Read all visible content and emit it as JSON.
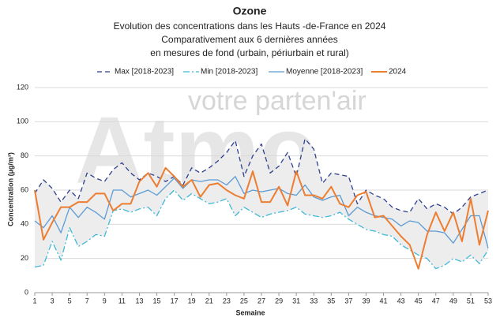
{
  "chart_data": {
    "type": "line",
    "title": "Ozone",
    "subtitle": [
      "Evolution des concentrations dans les Hauts -de-France en 2024",
      "Comparativement aux 6 dernières années",
      "en mesures de fond (urbain, périurbain et rural)"
    ],
    "watermark": [
      "votre parten'air",
      "Atmo"
    ],
    "xlabel": "Semaine",
    "ylabel": "Concentration (µg/m³)",
    "x": [
      1,
      2,
      3,
      4,
      5,
      6,
      7,
      8,
      9,
      10,
      11,
      12,
      13,
      14,
      15,
      16,
      17,
      18,
      19,
      20,
      21,
      22,
      23,
      24,
      25,
      26,
      27,
      28,
      29,
      30,
      31,
      32,
      33,
      34,
      35,
      36,
      37,
      38,
      39,
      40,
      41,
      42,
      43,
      44,
      45,
      46,
      47,
      48,
      49,
      50,
      51,
      52,
      53
    ],
    "xlim": [
      1,
      53
    ],
    "xticks": [
      1,
      3,
      5,
      7,
      9,
      11,
      13,
      15,
      17,
      19,
      21,
      23,
      25,
      27,
      29,
      31,
      33,
      35,
      37,
      39,
      41,
      43,
      45,
      47,
      49,
      51,
      53
    ],
    "ylim": [
      0,
      120
    ],
    "yticks": [
      0,
      20,
      40,
      60,
      80,
      100,
      120
    ],
    "grid": true,
    "legend": "top",
    "band_color": "#ededed",
    "series": [
      {
        "name": "Max [2018-2023]",
        "color": "#2e3f8f",
        "dash": "6 4",
        "values": [
          58,
          66,
          61,
          53,
          60,
          55,
          70,
          67,
          65,
          72,
          76,
          70,
          66,
          70,
          68,
          65,
          68,
          63,
          73,
          70,
          73,
          77,
          82,
          89,
          68,
          80,
          87,
          70,
          74,
          82,
          68,
          90,
          84,
          64,
          70,
          69,
          68,
          52,
          60,
          57,
          55,
          50,
          48,
          47,
          55,
          49,
          52,
          50,
          46,
          50,
          56,
          58,
          60
        ]
      },
      {
        "name": "Min [2018-2023]",
        "color": "#3fb8d8",
        "dash": "8 3 2 3",
        "values": [
          15,
          16,
          30,
          19,
          38,
          27,
          30,
          34,
          33,
          48,
          49,
          47,
          49,
          50,
          45,
          55,
          60,
          54,
          58,
          55,
          52,
          53,
          55,
          45,
          50,
          47,
          44,
          46,
          47,
          48,
          50,
          46,
          45,
          44,
          45,
          47,
          43,
          40,
          37,
          36,
          34,
          33,
          28,
          25,
          22,
          20,
          14,
          16,
          20,
          18,
          22,
          17,
          25
        ]
      },
      {
        "name": "Moyenne [2018-2023]",
        "color": "#5b9bd5",
        "dash": "",
        "values": [
          42,
          38,
          45,
          35,
          50,
          44,
          50,
          47,
          43,
          60,
          60,
          56,
          58,
          60,
          57,
          62,
          67,
          61,
          66,
          65,
          66,
          66,
          63,
          68,
          58,
          60,
          59,
          60,
          61,
          58,
          57,
          63,
          56,
          54,
          56,
          57,
          45,
          50,
          47,
          45,
          44,
          43,
          39,
          42,
          41,
          36,
          36,
          35,
          29,
          37,
          45,
          45,
          26
        ]
      },
      {
        "name": "2024",
        "color": "#ed7d31",
        "dash": "",
        "values": [
          60,
          31,
          41,
          50,
          50,
          53,
          53,
          58,
          58,
          48,
          52,
          52,
          65,
          70,
          62,
          73,
          68,
          62,
          66,
          56,
          63,
          64,
          60,
          57,
          55,
          71,
          53,
          53,
          62,
          51,
          71,
          57,
          57,
          55,
          62,
          52,
          50,
          57,
          59,
          44,
          45,
          39,
          33,
          28,
          14,
          34,
          47,
          36,
          47,
          30,
          55,
          28,
          48
        ]
      }
    ]
  }
}
